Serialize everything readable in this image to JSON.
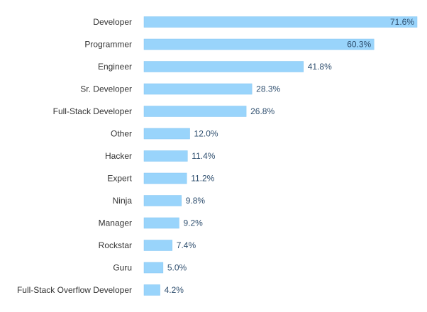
{
  "chart_data": {
    "type": "bar",
    "orientation": "horizontal",
    "title": "",
    "xlabel": "",
    "ylabel": "",
    "grid": false,
    "xlim": [
      0,
      71.6
    ],
    "categories": [
      "Developer",
      "Programmer",
      "Engineer",
      "Sr. Developer",
      "Full-Stack Developer",
      "Other",
      "Hacker",
      "Expert",
      "Ninja",
      "Manager",
      "Rockstar",
      "Guru",
      "Full-Stack Overflow Developer"
    ],
    "values": [
      71.6,
      60.3,
      41.8,
      28.3,
      26.8,
      12.0,
      11.4,
      11.2,
      9.8,
      9.2,
      7.4,
      5.0,
      4.2
    ],
    "value_labels": [
      "71.6%",
      "60.3%",
      "41.8%",
      "28.3%",
      "26.8%",
      "12.0%",
      "11.4%",
      "11.2%",
      "9.8%",
      "9.2%",
      "7.4%",
      "5.0%",
      "4.2%"
    ],
    "colors": {
      "bar": "#99d4fb",
      "bar_stroke": "#86c6f2",
      "category_text": "#333333",
      "value_text": "#2f4f6f"
    }
  }
}
